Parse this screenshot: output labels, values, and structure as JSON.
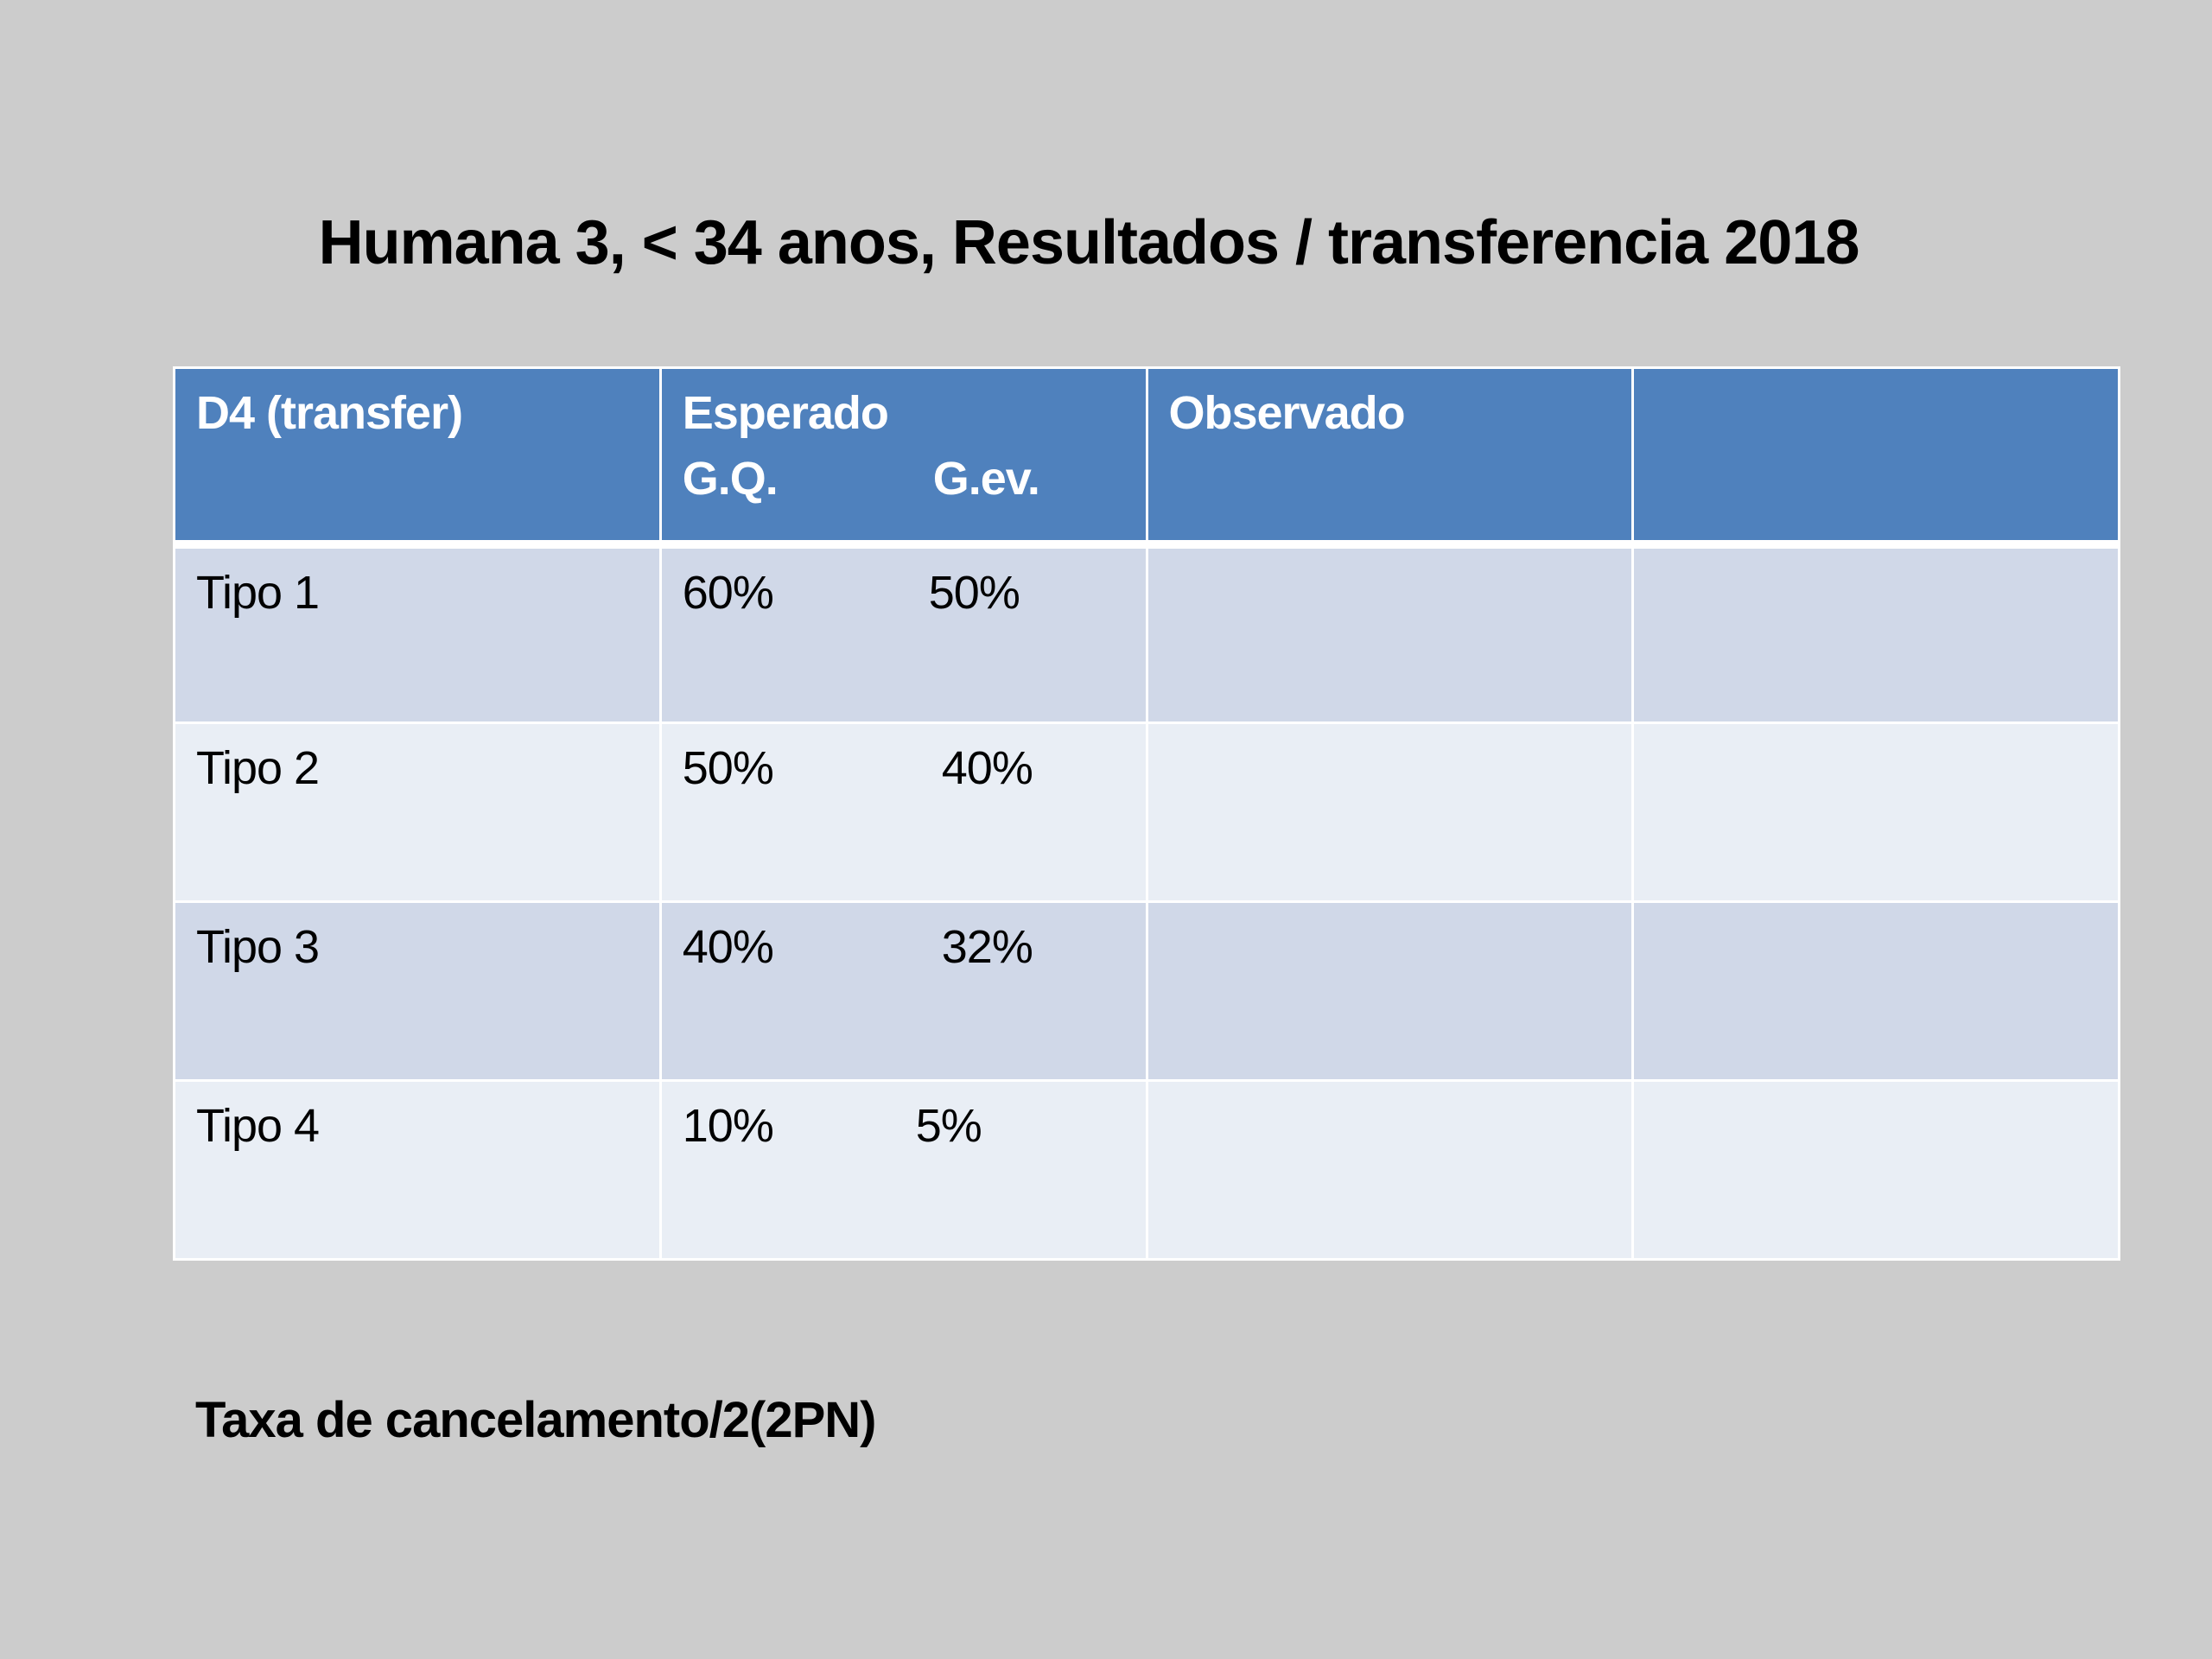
{
  "title": "Humana 3, < 34 anos, Resultados / transferencia  2018",
  "table": {
    "header": {
      "col1": "D4 (transfer)",
      "col2": "Esperado",
      "col2_sub1": "G.Q.",
      "col2_sub2": "G.ev.",
      "col3": "Observado",
      "col4": ""
    },
    "rows": [
      {
        "label": "Tipo 1",
        "gq": "60%",
        "gev": "50%",
        "observado": "",
        "extra": ""
      },
      {
        "label": "Tipo 2",
        "gq": "50%",
        "gev": "40%",
        "observado": "",
        "extra": ""
      },
      {
        "label": "Tipo 3",
        "gq": "40%",
        "gev": "32%",
        "observado": "",
        "extra": ""
      },
      {
        "label": "Tipo 4",
        "gq": "10%",
        "gev": "5%",
        "observado": "",
        "extra": ""
      }
    ]
  },
  "footer_note": "Taxa de cancelamento/2(2PN)",
  "colors": {
    "header": "#4f81bd",
    "row_odd": "#d0d8e8",
    "row_even": "#e9eef5",
    "background": "#cccccc"
  }
}
